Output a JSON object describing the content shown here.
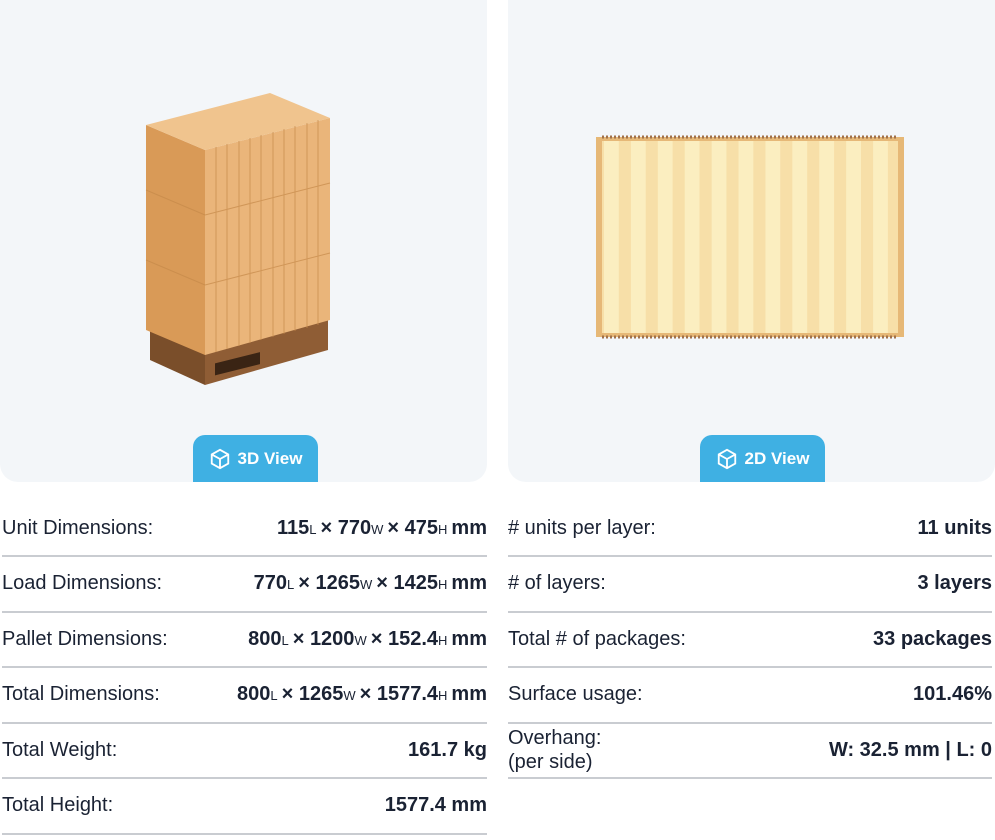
{
  "views": {
    "three_d": {
      "label": "3D View",
      "icon": "cube-icon"
    },
    "two_d": {
      "label": "2D View",
      "icon": "cube-icon"
    }
  },
  "colors": {
    "accent": "#3fb0e3",
    "panel": "#f3f6f9",
    "box": "#e8b071",
    "pallet": "#8a5a32"
  },
  "left": [
    {
      "label": "Unit Dimensions:",
      "dims": {
        "l": "115",
        "w": "770",
        "h": "475",
        "unit": "mm"
      }
    },
    {
      "label": "Load Dimensions:",
      "dims": {
        "l": "770",
        "w": "1265",
        "h": "1425",
        "unit": "mm"
      }
    },
    {
      "label": "Pallet Dimensions:",
      "dims": {
        "l": "800",
        "w": "1200",
        "h": "152.4",
        "unit": "mm"
      }
    },
    {
      "label": "Total Dimensions:",
      "dims": {
        "l": "800",
        "w": "1265",
        "h": "1577.4",
        "unit": "mm"
      }
    },
    {
      "label": "Total Weight:",
      "value": "161.7 kg"
    },
    {
      "label": "Total Height:",
      "value": "1577.4 mm"
    }
  ],
  "dim_suffix": {
    "l": "L",
    "w": "W",
    "h": "H",
    "x": "×"
  },
  "right": [
    {
      "label": "# units per layer:",
      "value": "11 units"
    },
    {
      "label": "# of layers:",
      "value": "3 layers"
    },
    {
      "label": "Total # of packages:",
      "value": "33 packages"
    },
    {
      "label": "Surface usage:",
      "value": "101.46%"
    },
    {
      "label": "Overhang:",
      "label2": "(per side)",
      "value": "W: 32.5 mm | L: 0"
    }
  ]
}
